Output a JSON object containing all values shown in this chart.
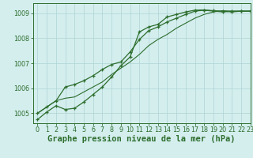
{
  "title": "Graphe pression niveau de la mer (hPa)",
  "bg_color": "#d4eeee",
  "grid_color": "#b0d4d4",
  "line_color": "#2d6e2d",
  "xlim": [
    -0.5,
    23
  ],
  "ylim": [
    1004.6,
    1009.4
  ],
  "yticks": [
    1005,
    1006,
    1007,
    1008,
    1009
  ],
  "xticks": [
    0,
    1,
    2,
    3,
    4,
    5,
    6,
    7,
    8,
    9,
    10,
    11,
    12,
    13,
    14,
    15,
    16,
    17,
    18,
    19,
    20,
    21,
    22,
    23
  ],
  "series": [
    {
      "y": [
        1004.75,
        1005.05,
        1005.3,
        1005.15,
        1005.2,
        1005.45,
        1005.75,
        1006.05,
        1006.45,
        1006.9,
        1007.25,
        1008.25,
        1008.45,
        1008.55,
        1008.85,
        1008.95,
        1009.05,
        1009.12,
        1009.13,
        1009.1,
        1009.08,
        1009.05,
        1009.08,
        1009.08
      ],
      "marker": true,
      "lw": 0.9
    },
    {
      "y": [
        1005.0,
        1005.25,
        1005.5,
        1006.05,
        1006.15,
        1006.3,
        1006.5,
        1006.75,
        1006.95,
        1007.05,
        1007.45,
        1007.95,
        1008.3,
        1008.45,
        1008.65,
        1008.8,
        1008.95,
        1009.08,
        1009.12,
        1009.08,
        1009.05,
        1009.08,
        1009.08,
        1009.08
      ],
      "marker": true,
      "lw": 0.9
    },
    {
      "y": [
        1005.0,
        1005.25,
        1005.5,
        1005.6,
        1005.65,
        1005.85,
        1006.05,
        1006.25,
        1006.55,
        1006.8,
        1007.05,
        1007.35,
        1007.7,
        1007.95,
        1008.15,
        1008.4,
        1008.6,
        1008.8,
        1008.95,
        1009.05,
        1009.1,
        1009.08,
        1009.08,
        1009.08
      ],
      "marker": false,
      "lw": 0.8
    }
  ],
  "title_fontsize": 7.5,
  "tick_fontsize": 5.8
}
